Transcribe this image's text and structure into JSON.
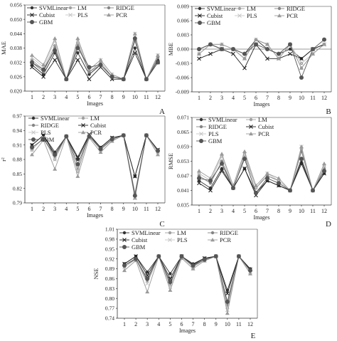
{
  "chart_data": [
    {
      "panel": "A",
      "type": "line",
      "ylabel": "MAE",
      "xlabel": "Images",
      "ylim": [
        0.02,
        0.056
      ],
      "yticks": [
        "0.020",
        "0.026",
        "0.032",
        "0.038",
        "0.044",
        "0.050",
        "0.056"
      ],
      "categories": [
        "1",
        "2",
        "3",
        "4",
        "5",
        "6",
        "7",
        "8",
        "9",
        "10",
        "11",
        "12"
      ],
      "legend": "top-left, 3 columns",
      "series": [
        {
          "name": "SVMLinear",
          "values": [
            0.031,
            0.027,
            0.036,
            0.025,
            0.036,
            0.027,
            0.031,
            0.026,
            0.025,
            0.038,
            0.025,
            0.033
          ]
        },
        {
          "name": "LM",
          "values": [
            0.033,
            0.029,
            0.039,
            0.025,
            0.04,
            0.028,
            0.032,
            0.026,
            0.025,
            0.042,
            0.025,
            0.034
          ]
        },
        {
          "name": "RIDGE",
          "values": [
            0.032,
            0.028,
            0.038,
            0.025,
            0.039,
            0.028,
            0.031,
            0.026,
            0.025,
            0.041,
            0.025,
            0.034
          ]
        },
        {
          "name": "Cubist",
          "values": [
            0.03,
            0.026,
            0.033,
            0.025,
            0.033,
            0.025,
            0.03,
            0.025,
            0.025,
            0.036,
            0.025,
            0.032
          ]
        },
        {
          "name": "PLS",
          "values": [
            0.034,
            0.03,
            0.041,
            0.025,
            0.041,
            0.029,
            0.033,
            0.027,
            0.025,
            0.044,
            0.025,
            0.035
          ]
        },
        {
          "name": "PCR",
          "values": [
            0.035,
            0.031,
            0.042,
            0.025,
            0.042,
            0.029,
            0.033,
            0.027,
            0.025,
            0.044,
            0.025,
            0.035
          ]
        },
        {
          "name": "GBM",
          "values": [
            0.032,
            0.029,
            0.037,
            0.025,
            0.038,
            0.03,
            0.031,
            0.026,
            0.025,
            0.042,
            0.025,
            0.032
          ]
        }
      ]
    },
    {
      "panel": "B",
      "type": "line",
      "ylabel": "MBE",
      "xlabel": "Images",
      "ylim": [
        -0.009,
        0.009
      ],
      "yticks": [
        "-0.009",
        "-0.006",
        "-0.003",
        "0.000",
        "0.003",
        "0.006",
        "0.009"
      ],
      "categories": [
        "1",
        "2",
        "3",
        "4",
        "5",
        "6",
        "7",
        "8",
        "9",
        "10",
        "11",
        "12"
      ],
      "legend": "top-left, 3 columns",
      "series": [
        {
          "name": "SVMLinear",
          "values": [
            0.0,
            0.001,
            0.0,
            0.0,
            -0.001,
            0.002,
            0.0,
            -0.001,
            0.0,
            -0.002,
            0.0,
            0.001
          ]
        },
        {
          "name": "LM",
          "values": [
            -0.001,
            0.001,
            0.001,
            0.0,
            -0.002,
            0.002,
            0.001,
            -0.002,
            0.001,
            -0.004,
            -0.001,
            0.001
          ]
        },
        {
          "name": "RIDGE",
          "values": [
            -0.001,
            0.001,
            0.0,
            0.0,
            -0.002,
            0.002,
            0.001,
            -0.002,
            0.001,
            -0.003,
            -0.001,
            0.001
          ]
        },
        {
          "name": "Cubist",
          "values": [
            -0.002,
            -0.001,
            0.0,
            -0.001,
            -0.004,
            0.001,
            -0.002,
            -0.002,
            -0.001,
            -0.002,
            0.0,
            0.001
          ]
        },
        {
          "name": "PLS",
          "values": [
            -0.001,
            0.001,
            0.001,
            0.0,
            -0.002,
            0.002,
            0.001,
            -0.002,
            0.001,
            -0.003,
            -0.001,
            0.001
          ]
        },
        {
          "name": "PCR",
          "values": [
            -0.001,
            0.001,
            0.001,
            0.0,
            -0.002,
            0.002,
            0.001,
            -0.002,
            0.001,
            -0.004,
            -0.001,
            0.001
          ]
        },
        {
          "name": "GBM",
          "values": [
            0.0,
            0.001,
            0.0,
            0.0,
            -0.001,
            0.001,
            0.0,
            -0.001,
            0.001,
            -0.006,
            0.0,
            0.002
          ]
        }
      ]
    },
    {
      "panel": "C",
      "type": "line",
      "ylabel": "r²",
      "xlabel": "Images",
      "ylim": [
        0.79,
        0.97
      ],
      "yticks": [
        "0.79",
        "0.82",
        "0.85",
        "0.88",
        "0.91",
        "0.94",
        "0.97"
      ],
      "categories": [
        "1",
        "2",
        "3",
        "4",
        "5",
        "6",
        "7",
        "8",
        "9",
        "10",
        "11",
        "12"
      ],
      "legend": "top-left, 2 columns",
      "series": [
        {
          "name": "SVMLinear",
          "values": [
            0.91,
            0.93,
            0.895,
            0.928,
            0.88,
            0.93,
            0.905,
            0.925,
            0.93,
            0.845,
            0.93,
            0.9
          ]
        },
        {
          "name": "LM",
          "values": [
            0.9,
            0.925,
            0.88,
            0.928,
            0.855,
            0.93,
            0.9,
            0.92,
            0.93,
            0.805,
            0.93,
            0.895
          ]
        },
        {
          "name": "RIDGE",
          "values": [
            0.9,
            0.925,
            0.885,
            0.928,
            0.86,
            0.93,
            0.9,
            0.92,
            0.93,
            0.81,
            0.93,
            0.895
          ]
        },
        {
          "name": "Cubist",
          "values": [
            0.91,
            0.93,
            0.89,
            0.928,
            0.885,
            0.932,
            0.905,
            0.925,
            0.93,
            0.845,
            0.93,
            0.9
          ]
        },
        {
          "name": "PLS",
          "values": [
            0.9,
            0.925,
            0.88,
            0.928,
            0.855,
            0.93,
            0.9,
            0.92,
            0.93,
            0.8,
            0.93,
            0.895
          ]
        },
        {
          "name": "PCR",
          "values": [
            0.89,
            0.92,
            0.86,
            0.928,
            0.845,
            0.925,
            0.895,
            0.918,
            0.93,
            0.8,
            0.93,
            0.89
          ]
        },
        {
          "name": "GBM",
          "values": [
            0.905,
            0.922,
            0.89,
            0.928,
            0.87,
            0.928,
            0.902,
            0.922,
            0.93,
            0.805,
            0.93,
            0.898
          ]
        }
      ]
    },
    {
      "panel": "D",
      "type": "line",
      "ylabel": "RMSE",
      "xlabel": "Images",
      "ylim": [
        0.035,
        0.071
      ],
      "yticks": [
        "0.035",
        "0.041",
        "0.047",
        "0.053",
        "0.059",
        "0.065",
        "0.071"
      ],
      "categories": [
        "1",
        "2",
        "3",
        "4",
        "5",
        "6",
        "7",
        "8",
        "9",
        "10",
        "11",
        "12"
      ],
      "legend": "top-left, 2 columns",
      "series": [
        {
          "name": "SVMLinear",
          "values": [
            0.045,
            0.042,
            0.05,
            0.042,
            0.05,
            0.04,
            0.045,
            0.043,
            0.041,
            0.052,
            0.041,
            0.048
          ]
        },
        {
          "name": "LM",
          "values": [
            0.048,
            0.045,
            0.055,
            0.042,
            0.056,
            0.042,
            0.047,
            0.045,
            0.041,
            0.058,
            0.041,
            0.051
          ]
        },
        {
          "name": "RIDGE",
          "values": [
            0.047,
            0.044,
            0.053,
            0.042,
            0.055,
            0.042,
            0.047,
            0.045,
            0.041,
            0.057,
            0.041,
            0.05
          ]
        },
        {
          "name": "Cubist",
          "values": [
            0.044,
            0.041,
            0.049,
            0.042,
            0.05,
            0.039,
            0.045,
            0.043,
            0.041,
            0.053,
            0.041,
            0.048
          ]
        },
        {
          "name": "PLS",
          "values": [
            0.048,
            0.045,
            0.055,
            0.042,
            0.056,
            0.042,
            0.048,
            0.045,
            0.041,
            0.059,
            0.041,
            0.051
          ]
        },
        {
          "name": "PCR",
          "values": [
            0.049,
            0.046,
            0.056,
            0.043,
            0.057,
            0.043,
            0.048,
            0.046,
            0.041,
            0.059,
            0.041,
            0.052
          ]
        },
        {
          "name": "GBM",
          "values": [
            0.046,
            0.045,
            0.052,
            0.042,
            0.054,
            0.04,
            0.046,
            0.044,
            0.041,
            0.054,
            0.041,
            0.049
          ]
        }
      ]
    },
    {
      "panel": "E",
      "type": "line",
      "ylabel": "NSE",
      "xlabel": "Images",
      "ylim": [
        0.74,
        1.01
      ],
      "yticks": [
        "0.74",
        "0.77",
        "0.80",
        "0.83",
        "0.86",
        "0.89",
        "0.92",
        "0.95",
        "0.98",
        "1.01"
      ],
      "categories": [
        "1",
        "2",
        "3",
        "4",
        "5",
        "6",
        "7",
        "8",
        "9",
        "10",
        "11",
        "12"
      ],
      "legend": "top-left, 3 columns",
      "series": [
        {
          "name": "SVMLinear",
          "values": [
            0.905,
            0.928,
            0.88,
            0.928,
            0.875,
            0.928,
            0.905,
            0.922,
            0.928,
            0.825,
            0.928,
            0.89
          ]
        },
        {
          "name": "LM",
          "values": [
            0.895,
            0.92,
            0.85,
            0.928,
            0.84,
            0.928,
            0.895,
            0.918,
            0.928,
            0.77,
            0.928,
            0.882
          ]
        },
        {
          "name": "RIDGE",
          "values": [
            0.9,
            0.922,
            0.855,
            0.928,
            0.845,
            0.928,
            0.898,
            0.918,
            0.928,
            0.78,
            0.928,
            0.885
          ]
        },
        {
          "name": "Cubist",
          "values": [
            0.905,
            0.928,
            0.87,
            0.928,
            0.86,
            0.928,
            0.902,
            0.922,
            0.928,
            0.815,
            0.928,
            0.888
          ]
        },
        {
          "name": "PLS",
          "values": [
            0.895,
            0.918,
            0.845,
            0.928,
            0.835,
            0.925,
            0.895,
            0.916,
            0.928,
            0.765,
            0.928,
            0.88
          ]
        },
        {
          "name": "PCR",
          "values": [
            0.885,
            0.915,
            0.82,
            0.928,
            0.825,
            0.922,
            0.89,
            0.914,
            0.928,
            0.755,
            0.928,
            0.875
          ]
        },
        {
          "name": "GBM",
          "values": [
            0.9,
            0.92,
            0.86,
            0.928,
            0.85,
            0.928,
            0.9,
            0.918,
            0.928,
            0.79,
            0.928,
            0.885
          ]
        }
      ]
    }
  ],
  "series_styles": [
    {
      "color": "#333333",
      "marker": "dot"
    },
    {
      "color": "#a0a0a0",
      "marker": "dot"
    },
    {
      "color": "#858585",
      "marker": "dot"
    },
    {
      "color": "#222222",
      "marker": "x"
    },
    {
      "color": "#c8c8c8",
      "marker": "x"
    },
    {
      "color": "#9a9a9a",
      "marker": "triangle"
    },
    {
      "color": "#555555",
      "marker": "bigdot"
    }
  ]
}
